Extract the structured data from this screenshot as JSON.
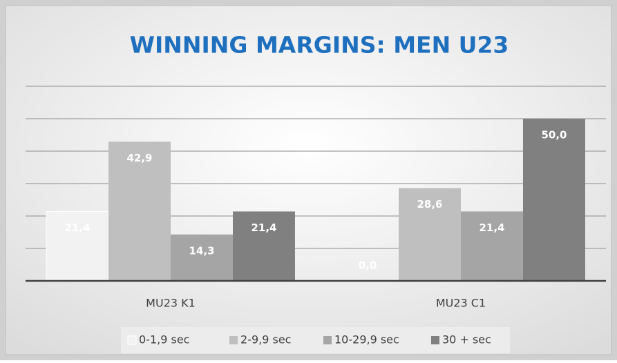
{
  "chart_data": {
    "type": "bar",
    "title": "WINNING MARGINS: MEN U23",
    "categories": [
      "MU23 K1",
      "MU23 C1"
    ],
    "series": [
      {
        "name": "0-1,9 sec",
        "color": "#f2f2f2",
        "values": [
          21.4,
          0.0
        ],
        "value_labels": [
          "21,4",
          "0,0"
        ]
      },
      {
        "name": "2-9,9 sec",
        "color": "#bfbfbf",
        "values": [
          42.9,
          28.6
        ],
        "value_labels": [
          "42,9",
          "28,6"
        ]
      },
      {
        "name": "10-29,9 sec",
        "color": "#a5a5a5",
        "values": [
          14.3,
          21.4
        ],
        "value_labels": [
          "14,3",
          "21,4"
        ]
      },
      {
        "name": "30 + sec",
        "color": "#808080",
        "values": [
          21.4,
          50.0
        ],
        "value_labels": [
          "21,4",
          "50,0"
        ]
      }
    ],
    "ylim": [
      0,
      60
    ],
    "yticks": [
      0,
      10,
      20,
      30,
      40,
      50,
      60
    ],
    "grid": true,
    "legend": "bottom"
  }
}
